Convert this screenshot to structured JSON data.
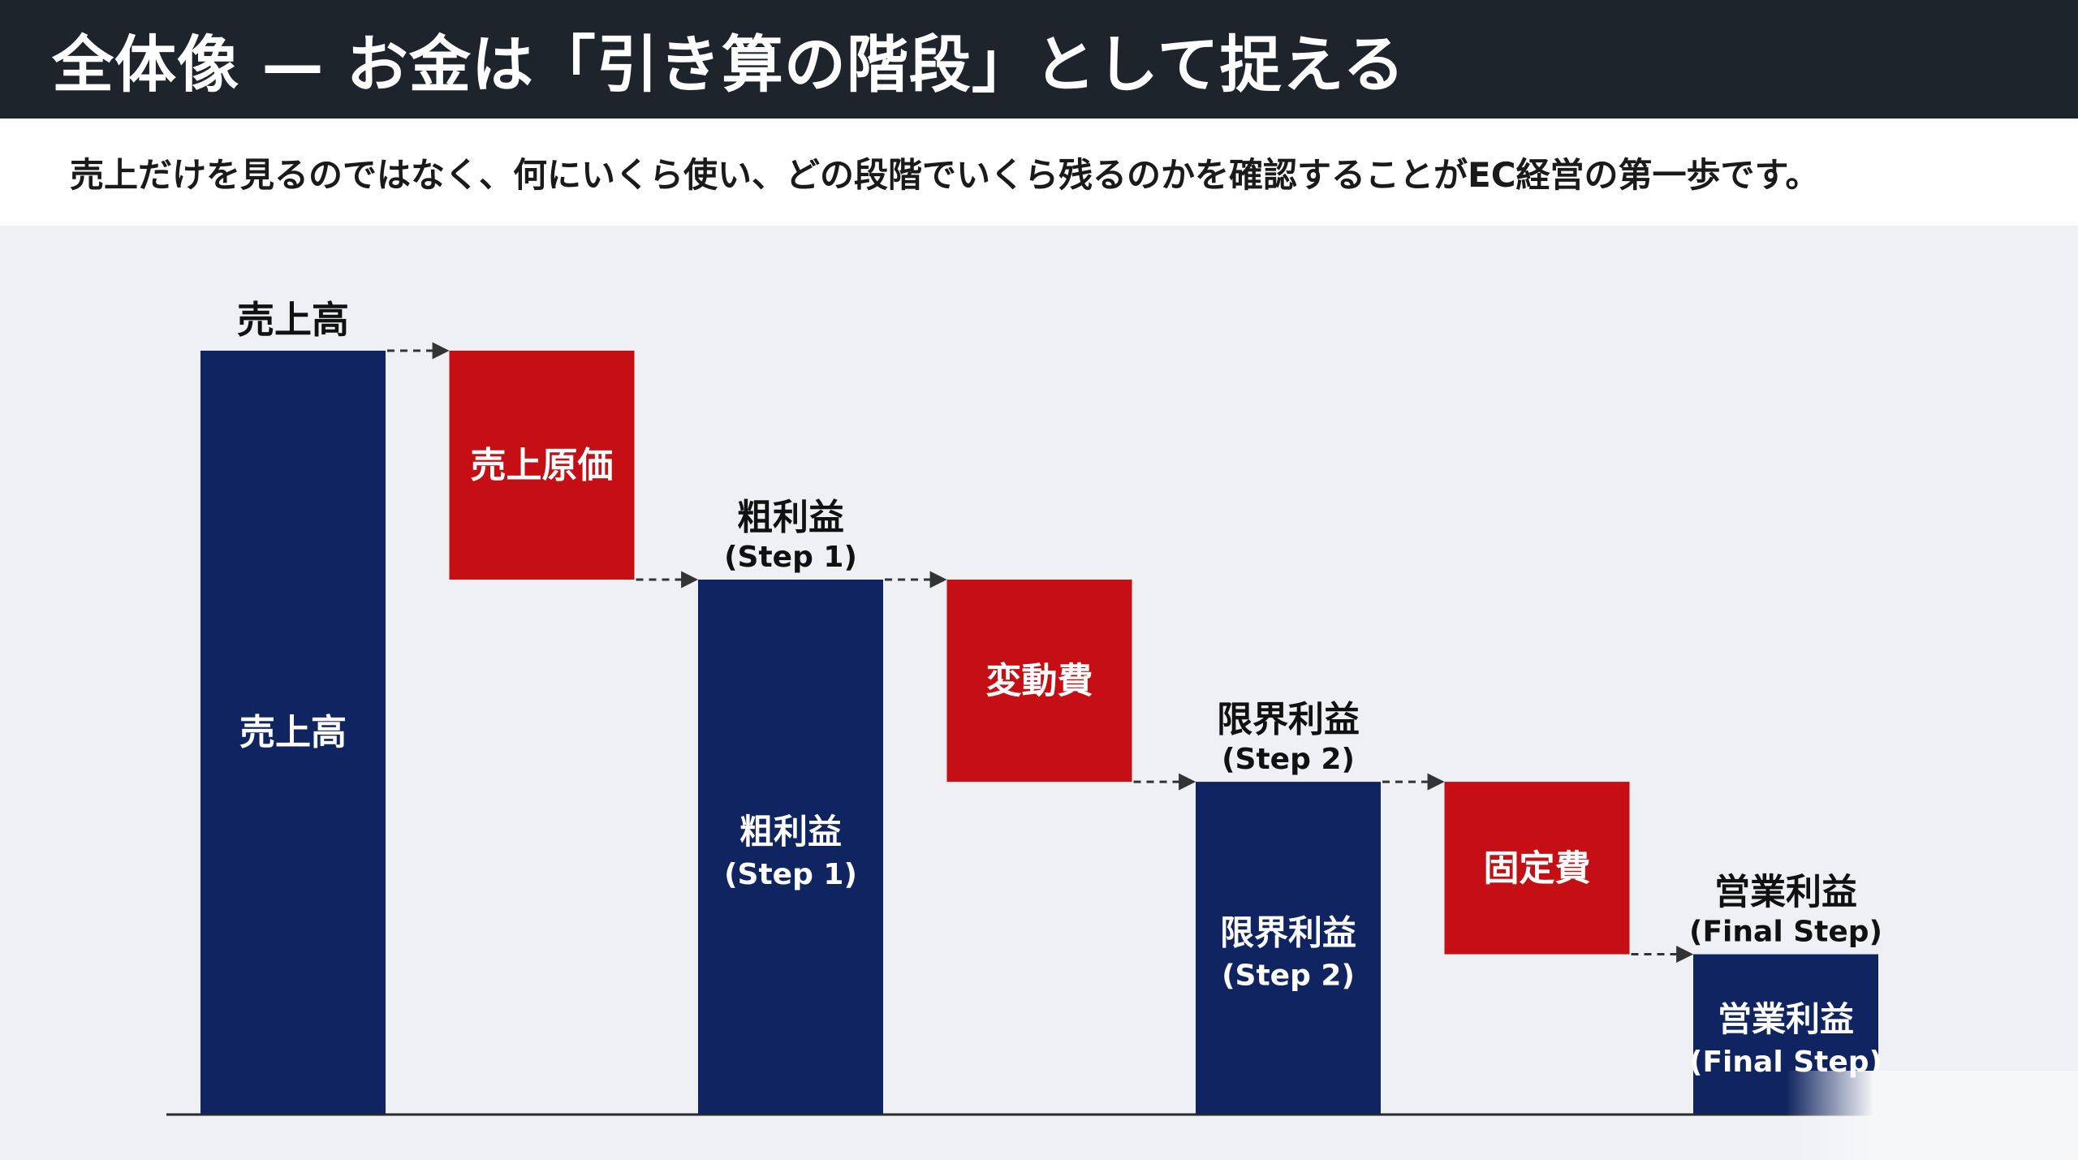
{
  "header": {
    "title": "全体像 — お金は「引き算の階段」として捉える"
  },
  "subtitle": "売上だけを見るのではなく、何にいくら使い、どの段階でいくら残るのかを確認することがEC経営の第一歩です。",
  "colors": {
    "header_bg": "#1e242c",
    "positive": "#0f2460",
    "negative": "#c50f14",
    "background": "#eef0f3",
    "arrow": "#333333"
  },
  "chart_data": {
    "type": "bar",
    "subtype": "waterfall",
    "title": "",
    "xlabel": "",
    "ylabel": "",
    "ylim": [
      0,
      100
    ],
    "grid": false,
    "categories": [
      "売上高",
      "売上原価",
      "粗利益",
      "変動費",
      "限界利益",
      "固定費",
      "営業利益"
    ],
    "steps": [
      {
        "label": "売上高",
        "sublabel": "",
        "kind": "total",
        "value": 100,
        "top_label": "売上高",
        "top_sublabel": ""
      },
      {
        "label": "売上原価",
        "sublabel": "",
        "kind": "decrease",
        "value": 30,
        "top_label": "",
        "top_sublabel": ""
      },
      {
        "label": "粗利益",
        "sublabel": "(Step 1)",
        "kind": "total",
        "value": 70,
        "top_label": "粗利益",
        "top_sublabel": "(Step 1)"
      },
      {
        "label": "変動費",
        "sublabel": "",
        "kind": "decrease",
        "value": 26.5,
        "top_label": "",
        "top_sublabel": ""
      },
      {
        "label": "限界利益",
        "sublabel": "(Step 2)",
        "kind": "total",
        "value": 43.5,
        "top_label": "限界利益",
        "top_sublabel": "(Step 2)"
      },
      {
        "label": "固定費",
        "sublabel": "",
        "kind": "decrease",
        "value": 22.6,
        "top_label": "",
        "top_sublabel": ""
      },
      {
        "label": "営業利益",
        "sublabel": "(Final Step)",
        "kind": "total",
        "value": 20.9,
        "top_label": "営業利益",
        "top_sublabel": "(Final Step)"
      }
    ]
  }
}
